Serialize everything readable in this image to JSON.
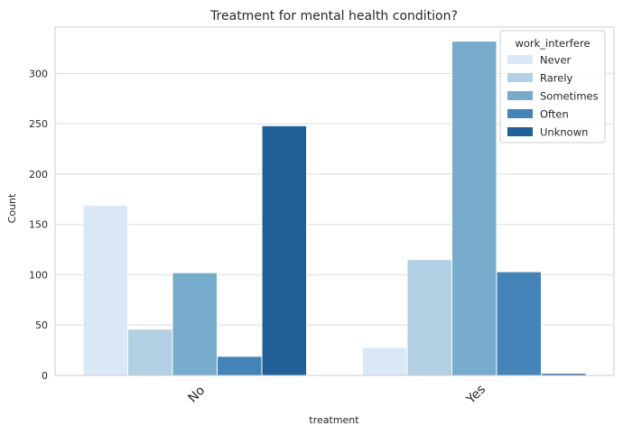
{
  "chart_data": {
    "type": "bar",
    "title": "Treatment for mental health condition?",
    "xlabel": "treatment",
    "ylabel": "Count",
    "categories": [
      "No",
      "Yes"
    ],
    "series": [
      {
        "name": "Never",
        "values": [
          169,
          28
        ],
        "color": "#dbe8f5"
      },
      {
        "name": "Rarely",
        "values": [
          46,
          115
        ],
        "color": "#b3cfe3"
      },
      {
        "name": "Sometimes",
        "values": [
          102,
          332
        ],
        "color": "#77abcc"
      },
      {
        "name": "Often",
        "values": [
          19,
          103
        ],
        "color": "#4383b8"
      },
      {
        "name": "Unknown",
        "values": [
          248,
          2
        ],
        "color": "#215f98"
      }
    ],
    "ylim": [
      0,
      346
    ],
    "yticks": [
      0,
      50,
      100,
      150,
      200,
      250,
      300
    ],
    "grid": true,
    "legend": {
      "title": "work_interfere",
      "placement": "top-right"
    }
  }
}
